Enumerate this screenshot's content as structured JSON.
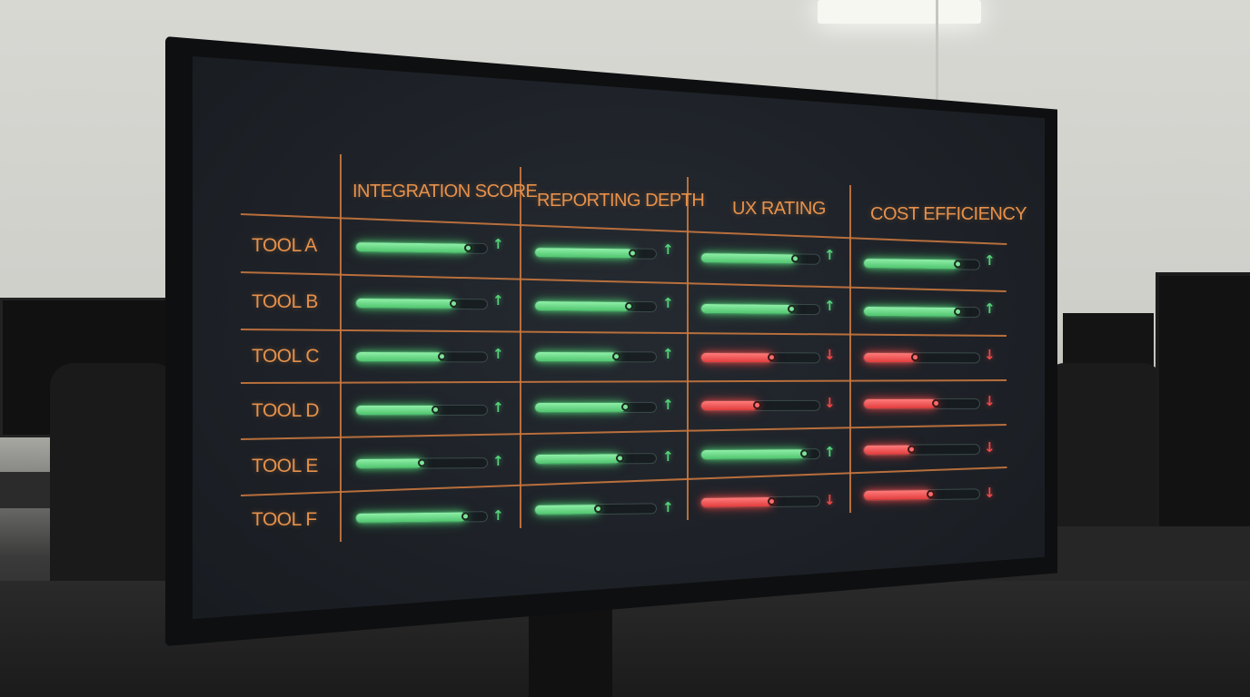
{
  "table": {
    "columns": [
      {
        "label": "INTEGRATION SCORE"
      },
      {
        "label": "REPORTING DEPTH"
      },
      {
        "label": "UX RATING"
      },
      {
        "label": "COST EFFICIENCY"
      }
    ],
    "rows": [
      {
        "label": "TOOL A",
        "cells": [
          {
            "level": 0.86,
            "status": "positive",
            "trend": "up",
            "arrow": "↑"
          },
          {
            "level": 0.81,
            "status": "positive",
            "trend": "up",
            "arrow": "↑"
          },
          {
            "level": 0.8,
            "status": "positive",
            "trend": "up",
            "arrow": "↑"
          },
          {
            "level": 0.82,
            "status": "positive",
            "trend": "up",
            "arrow": "↑"
          }
        ]
      },
      {
        "label": "TOOL B",
        "cells": [
          {
            "level": 0.75,
            "status": "positive",
            "trend": "up",
            "arrow": "↑"
          },
          {
            "level": 0.78,
            "status": "positive",
            "trend": "up",
            "arrow": "↑"
          },
          {
            "level": 0.77,
            "status": "positive",
            "trend": "up",
            "arrow": "↑"
          },
          {
            "level": 0.82,
            "status": "positive",
            "trend": "up",
            "arrow": "↑"
          }
        ]
      },
      {
        "label": "TOOL C",
        "cells": [
          {
            "level": 0.66,
            "status": "positive",
            "trend": "up",
            "arrow": "↑"
          },
          {
            "level": 0.68,
            "status": "positive",
            "trend": "up",
            "arrow": "↑"
          },
          {
            "level": 0.6,
            "status": "negative",
            "trend": "down",
            "arrow": "↓"
          },
          {
            "level": 0.45,
            "status": "negative",
            "trend": "down",
            "arrow": "↓"
          }
        ]
      },
      {
        "label": "TOOL D",
        "cells": [
          {
            "level": 0.61,
            "status": "positive",
            "trend": "up",
            "arrow": "↑"
          },
          {
            "level": 0.75,
            "status": "positive",
            "trend": "up",
            "arrow": "↑"
          },
          {
            "level": 0.48,
            "status": "negative",
            "trend": "down",
            "arrow": "↓"
          },
          {
            "level": 0.63,
            "status": "negative",
            "trend": "down",
            "arrow": "↓"
          }
        ]
      },
      {
        "label": "TOOL E",
        "cells": [
          {
            "level": 0.51,
            "status": "positive",
            "trend": "up",
            "arrow": "↑"
          },
          {
            "level": 0.71,
            "status": "positive",
            "trend": "up",
            "arrow": "↑"
          },
          {
            "level": 0.88,
            "status": "positive",
            "trend": "up",
            "arrow": "↑"
          },
          {
            "level": 0.42,
            "status": "negative",
            "trend": "down",
            "arrow": "↓"
          }
        ]
      },
      {
        "label": "TOOL F",
        "cells": [
          {
            "level": 0.84,
            "status": "positive",
            "trend": "up",
            "arrow": "↑"
          },
          {
            "level": 0.53,
            "status": "positive",
            "trend": "up",
            "arrow": "↑"
          },
          {
            "level": 0.6,
            "status": "negative",
            "trend": "down",
            "arrow": "↓"
          },
          {
            "level": 0.58,
            "status": "negative",
            "trend": "down",
            "arrow": "↓"
          }
        ]
      }
    ]
  },
  "colors": {
    "accent": "#e7914a",
    "positive": "#55d27a",
    "negative": "#ee4747",
    "screen_background": "#1e2228"
  }
}
